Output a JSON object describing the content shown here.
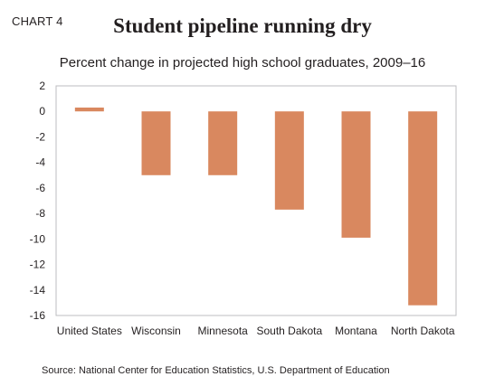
{
  "chart_label": "CHART 4",
  "chart_data": {
    "type": "bar",
    "title": "Student pipeline running dry",
    "subtitle": "Percent change in projected high school graduates, 2009–16",
    "xlabel": "",
    "ylabel": "",
    "categories": [
      "United States",
      "Wisconsin",
      "Minnesota",
      "South Dakota",
      "Montana",
      "North Dakota"
    ],
    "values": [
      0.3,
      -5.0,
      -5.0,
      -7.7,
      -9.9,
      -15.2
    ],
    "ylim": [
      -16,
      2
    ],
    "yticks": [
      "2",
      "0",
      "-2",
      "-4",
      "-6",
      "-8",
      "-10",
      "-12",
      "-14",
      "-16"
    ],
    "grid": false,
    "bar_color": "#d9885f",
    "axis_color": "#bcbec0"
  },
  "source": "Source: National Center for Education Statistics, U.S. Department of Education"
}
